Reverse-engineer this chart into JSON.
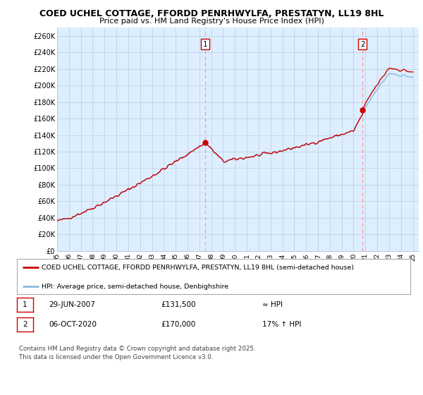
{
  "title1": "COED UCHEL COTTAGE, FFORDD PENRHWYLFA, PRESTATYN, LL19 8HL",
  "title2": "Price paid vs. HM Land Registry's House Price Index (HPI)",
  "ylim": [
    0,
    270000
  ],
  "yticks": [
    0,
    20000,
    40000,
    60000,
    80000,
    100000,
    120000,
    140000,
    160000,
    180000,
    200000,
    220000,
    240000,
    260000
  ],
  "ytick_labels": [
    "£0",
    "£20K",
    "£40K",
    "£60K",
    "£80K",
    "£100K",
    "£120K",
    "£140K",
    "£160K",
    "£180K",
    "£200K",
    "£220K",
    "£240K",
    "£260K"
  ],
  "purchase1_date": 2007.49,
  "purchase1_price": 131500,
  "purchase2_date": 2020.76,
  "purchase2_price": 170000,
  "line_color_price": "#cc0000",
  "line_color_hpi": "#88bbdd",
  "dashed_color": "#ff9999",
  "legend_label1": "COED UCHEL COTTAGE, FFORDD PENRHWYLFA, PRESTATYN, LL19 8HL (semi-detached house)",
  "legend_label2": "HPI: Average price, semi-detached house, Denbighshire",
  "table_row1": [
    "1",
    "29-JUN-2007",
    "£131,500",
    "≈ HPI"
  ],
  "table_row2": [
    "2",
    "06-OCT-2020",
    "£170,000",
    "17% ↑ HPI"
  ],
  "footer": "Contains HM Land Registry data © Crown copyright and database right 2025.\nThis data is licensed under the Open Government Licence v3.0.",
  "plot_bg_color": "#ddeeff",
  "background_color": "#ffffff",
  "grid_color": "#bbccdd"
}
